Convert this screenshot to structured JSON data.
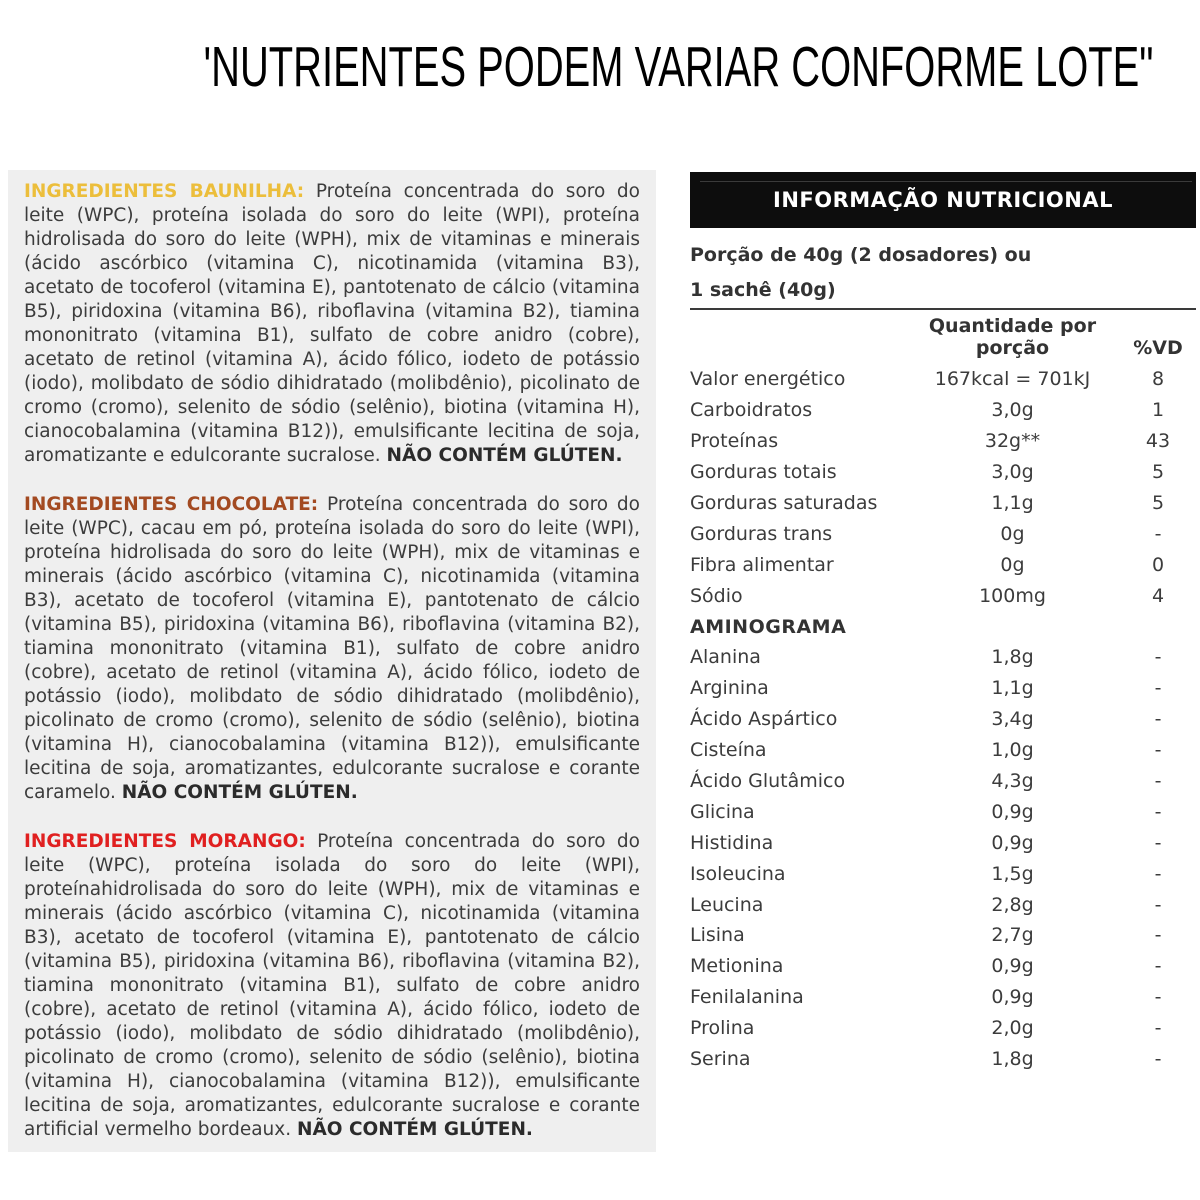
{
  "title": "'NUTRIENTES PODEM VARIAR CONFORME LOTE\"",
  "ingredients": {
    "paragraphs": [
      {
        "header": "INGREDIENTES BAUNILHA:",
        "header_color": "#ECBE3B",
        "body": "Proteína concentrada do soro do leite (WPC), proteína isolada do soro do leite (WPI), proteína hidrolisada do soro do leite (WPH), mix de vitaminas e minerais (ácido ascórbico (vitamina C), nicotinamida (vitamina B3), acetato de tocoferol (vitamina E), pantotenato de cálcio (vitamina B5), piridoxina (vitamina B6), riboflavina (vitamina B2), tiamina mononitrato (vitamina B1), sulfato de cobre anidro (cobre), acetato de retinol (vitamina A), ácido fólico, iodeto de potássio (iodo), molibdato de sódio dihidratado (molibdênio), picolinato de cromo (cromo), selenito de sódio (selênio), biotina (vitamina H), cianocobalamina (vitamina B12)), emulsificante lecitina de soja, aromatizante e edulcorante sucralose.",
        "tail": "NÃO CONTÉM GLÚTEN."
      },
      {
        "header": "INGREDIENTES CHOCOLATE:",
        "header_color": "#A34A21",
        "body": "Proteína concentrada do soro do leite (WPC), cacau em pó, proteína isolada do soro do leite (WPI), proteína hidrolisada do soro do leite (WPH), mix de vitaminas e minerais (ácido ascórbico (vitamina C), nicotinamida (vitamina B3), acetato de tocoferol (vitamina E), pantotenato de cálcio (vitamina B5), piridoxina (vitamina B6), riboflavina (vitamina B2), tiamina mononitrato (vitamina B1), sulfato de cobre anidro (cobre), acetato de retinol (vitamina A), ácido fólico, iodeto de potássio (iodo), molibdato de sódio dihidratado (molibdênio), picolinato de cromo (cromo), selenito de sódio (selênio), biotina (vitamina H), cianocobalamina (vitamina B12)), emulsificante lecitina de soja, aromatizantes, edulcorante sucralose e corante caramelo.",
        "tail": "NÃO CONTÉM GLÚTEN."
      },
      {
        "header": "INGREDIENTES MORANGO:",
        "header_color": "#E02020",
        "body": "Proteína concentrada do soro do leite (WPC), proteína isolada do soro do leite (WPI), proteínahidrolisada do soro do leite (WPH), mix de vitaminas e minerais (ácido ascórbico (vitamina C), nicotinamida (vitamina B3), acetato de tocoferol (vitamina E), pantotenato de cálcio (vitamina B5), piridoxina (vitamina B6), riboflavina (vitamina B2), tiamina mononitrato (vitamina B1), sulfato de cobre anidro (cobre), acetato de retinol (vitamina A), ácido fólico, iodeto de potássio (iodo), molibdato de sódio dihidratado (molibdênio), picolinato de cromo (cromo), selenito de sódio (selênio), biotina (vitamina H), cianocobalamina (vitamina B12)), emulsificante lecitina de soja, aromatizantes, edulcorante sucralose e corante artificial vermelho bordeaux.",
        "tail": "NÃO CONTÉM GLÚTEN."
      }
    ]
  },
  "nutrition": {
    "header": "INFORMAÇÃO NUTRICIONAL",
    "header_bg": "#0D0D0D",
    "portion_line1": "Porção de 40g (2 dosadores) ou",
    "portion_line2": "1 sachê (40g)",
    "col_qty": "Quantidade por porção",
    "col_vd": "%VD",
    "rows": [
      {
        "label": "Valor energético",
        "qty": "167kcal = 701kJ",
        "vd": "8"
      },
      {
        "label": "Carboidratos",
        "qty": "3,0g",
        "vd": "1"
      },
      {
        "label": "Proteínas",
        "qty": "32g**",
        "vd": "43"
      },
      {
        "label": "Gorduras totais",
        "qty": "3,0g",
        "vd": "5"
      },
      {
        "label": "Gorduras saturadas",
        "qty": "1,1g",
        "vd": "5"
      },
      {
        "label": "Gorduras trans",
        "qty": "0g",
        "vd": "-"
      },
      {
        "label": "Fibra alimentar",
        "qty": "0g",
        "vd": "0"
      },
      {
        "label": "Sódio",
        "qty": "100mg",
        "vd": "4"
      },
      {
        "label": "AMINOGRAMA",
        "qty": "",
        "vd": "",
        "section": true
      },
      {
        "label": "Alanina",
        "qty": "1,8g",
        "vd": "-"
      },
      {
        "label": "Arginina",
        "qty": "1,1g",
        "vd": "-"
      },
      {
        "label": "Ácido Aspártico",
        "qty": "3,4g",
        "vd": "-"
      },
      {
        "label": "Cisteína",
        "qty": "1,0g",
        "vd": "-"
      },
      {
        "label": "Ácido Glutâmico",
        "qty": "4,3g",
        "vd": "-"
      },
      {
        "label": "Glicina",
        "qty": "0,9g",
        "vd": "-"
      },
      {
        "label": "Histidina",
        "qty": "0,9g",
        "vd": "-"
      },
      {
        "label": "Isoleucina",
        "qty": "1,5g",
        "vd": "-"
      },
      {
        "label": "Leucina",
        "qty": "2,8g",
        "vd": "-"
      },
      {
        "label": "Lisina",
        "qty": "2,7g",
        "vd": "-"
      },
      {
        "label": "Metionina",
        "qty": "0,9g",
        "vd": "-"
      },
      {
        "label": "Fenilalanina",
        "qty": "0,9g",
        "vd": "-"
      },
      {
        "label": "Prolina",
        "qty": "2,0g",
        "vd": "-"
      },
      {
        "label": "Serina",
        "qty": "1,8g",
        "vd": "-"
      }
    ]
  }
}
